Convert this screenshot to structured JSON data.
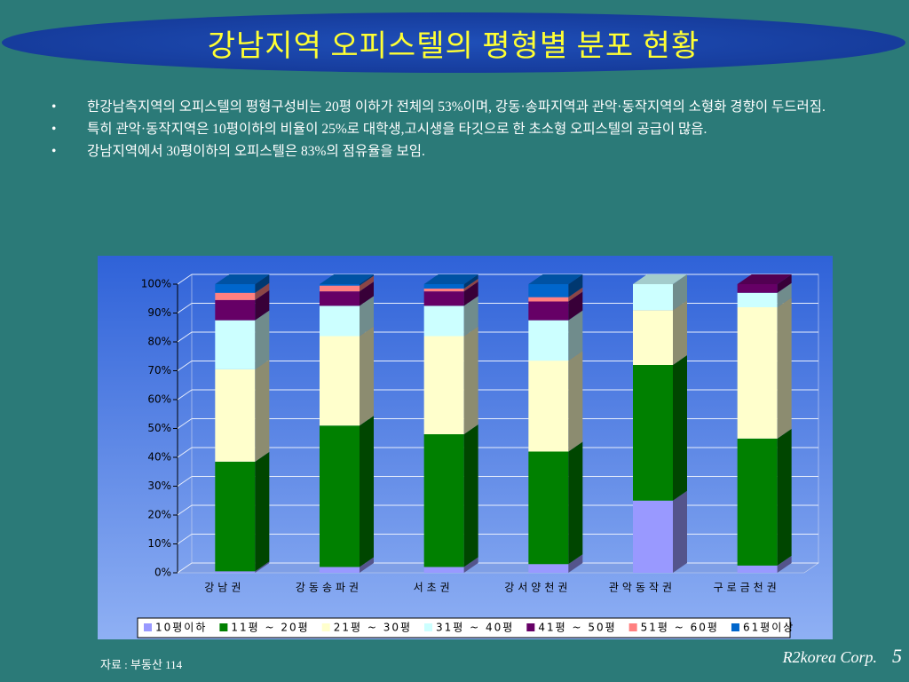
{
  "title": "강남지역 오피스텔의 평형별 분포 현황",
  "bullets": [
    "한강남측지역의 오피스텔의 평형구성비는 20평 이하가 전체의 53%이며, 강동·송파지역과 관악·동작지역의 소형화 경향이 두드러짐.",
    "특히 관악·동작지역은 10평이하의 비율이 25%로 대학생,고시생을 타깃으로 한 초소형 오피스텔의 공급이 많음.",
    "강남지역에서 30평이하의 오피스텔은 83%의 점유율을 보임."
  ],
  "chart_data": {
    "type": "stacked-bar-3d",
    "categories": [
      "강남권",
      "강동송파권",
      "서초권",
      "강서양천권",
      "관악동작권",
      "구로금천권"
    ],
    "series": [
      {
        "name": "10평이하",
        "color": "#9999ff",
        "values": [
          0.5,
          2,
          2,
          3,
          25,
          2.5
        ]
      },
      {
        "name": "11평 ~ 20평",
        "color": "#008000",
        "values": [
          38,
          49,
          46,
          39,
          47,
          44
        ]
      },
      {
        "name": "21평 ~ 30평",
        "color": "#ffffcc",
        "values": [
          32,
          31,
          34,
          31.5,
          19,
          45.5
        ]
      },
      {
        "name": "31평 ~ 40평",
        "color": "#ccffff",
        "values": [
          17,
          10.5,
          10.5,
          14,
          9,
          5
        ]
      },
      {
        "name": "41평 ~ 50평",
        "color": "#660066",
        "values": [
          7,
          5,
          5,
          6.5,
          0,
          3
        ]
      },
      {
        "name": "51평 ~ 60평",
        "color": "#ff8080",
        "values": [
          2.5,
          2,
          1,
          1.5,
          0,
          0
        ]
      },
      {
        "name": "61평이상",
        "color": "#0066cc",
        "values": [
          3,
          0.5,
          1.5,
          4.5,
          0,
          0
        ]
      }
    ],
    "ylim": [
      0,
      100
    ],
    "yticks": [
      {
        "value": 0,
        "label": "0%"
      },
      {
        "value": 10,
        "label": "10%"
      },
      {
        "value": 20,
        "label": "20%"
      },
      {
        "value": 30,
        "label": "30%"
      },
      {
        "value": 40,
        "label": "40%"
      },
      {
        "value": 50,
        "label": "50%"
      },
      {
        "value": 60,
        "label": "60%"
      },
      {
        "value": 70,
        "label": "70%"
      },
      {
        "value": 80,
        "label": "80%"
      },
      {
        "value": 90,
        "label": "90%"
      },
      {
        "value": 100,
        "label": "100%"
      }
    ],
    "grid": true,
    "legend": "bottom"
  },
  "source": "자료 : 부동산 114",
  "footer": {
    "company": "R2korea Corp.",
    "page": "5"
  }
}
